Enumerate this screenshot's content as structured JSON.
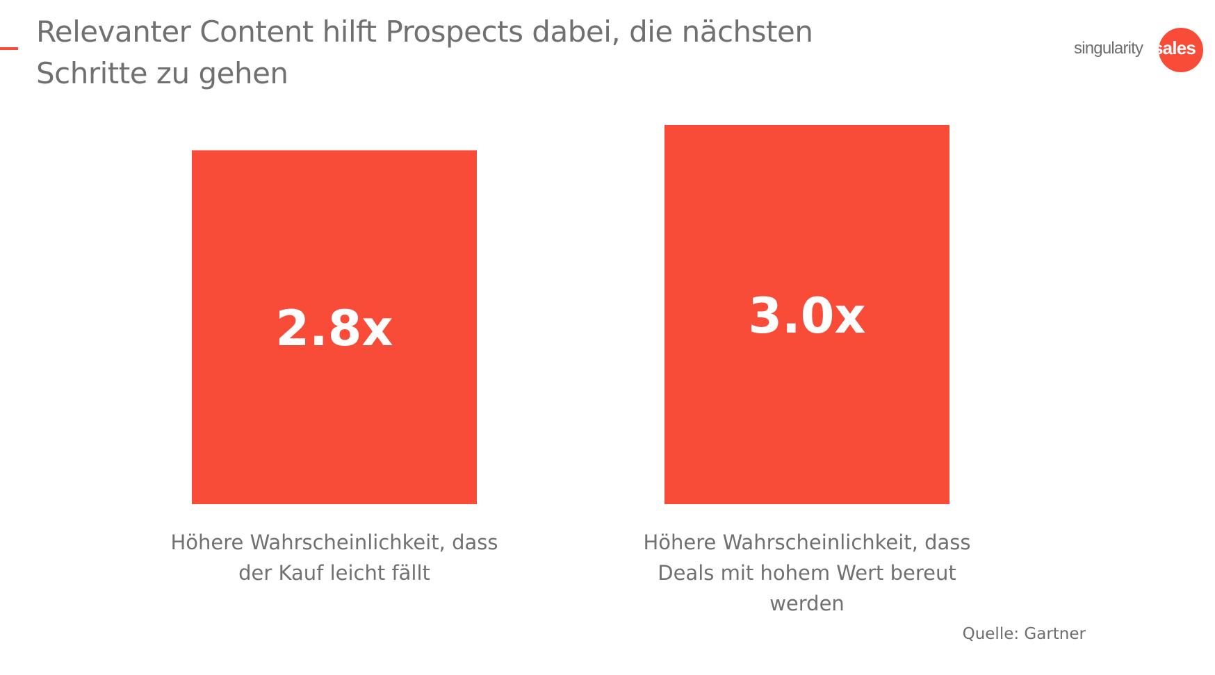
{
  "header": {
    "title": "Relevanter Content hilft Prospects dabei, die nächsten Schritte zu gehen"
  },
  "logo": {
    "text_part1": "singularity",
    "text_part2": "sales"
  },
  "colors": {
    "accent": "#F94C38",
    "text_grey": "#707070",
    "value_label": "#ffffff"
  },
  "chart_data": {
    "type": "bar",
    "categories": [
      "Höhere Wahrscheinlichkeit, dass der Kauf leicht fällt",
      "Höhere Wahrscheinlichkeit, dass Deals mit hohem Wert bereut werden"
    ],
    "category_lines": [
      [
        "Höhere Wahrscheinlichkeit, dass",
        "der Kauf leicht fällt"
      ],
      [
        "Höhere Wahrscheinlichkeit, dass",
        "Deals mit hohem Wert bereut",
        "werden"
      ]
    ],
    "values": [
      2.8,
      3.0
    ],
    "data_labels": [
      "2.8x",
      "3.0x"
    ],
    "ylim": [
      0,
      3.0
    ],
    "grid": false,
    "axes_visible": false
  },
  "source": "Quelle: Gartner"
}
